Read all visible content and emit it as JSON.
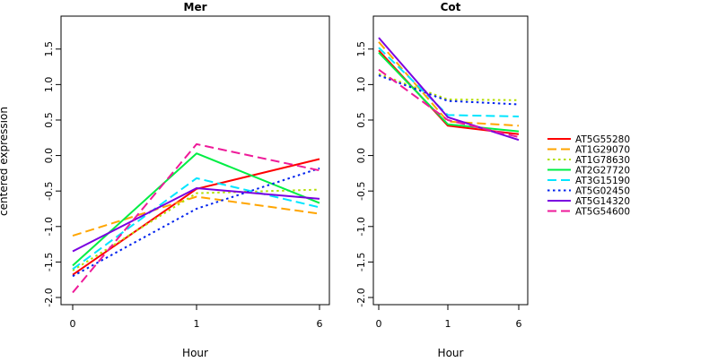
{
  "chart_data": {
    "type": "line",
    "ylabel": "centered expression",
    "legend_position": "right",
    "series_styles": [
      {
        "name": "AT5G55280",
        "color": "#FF0000",
        "dash": "solid"
      },
      {
        "name": "AT1G29070",
        "color": "#FFA500",
        "dash": "dashed"
      },
      {
        "name": "AT1G78630",
        "color": "#B2DF00",
        "dash": "dotted"
      },
      {
        "name": "AT2G27720",
        "color": "#00EE44",
        "dash": "solid"
      },
      {
        "name": "AT3G15190",
        "color": "#00E5FF",
        "dash": "dashed"
      },
      {
        "name": "AT5G02450",
        "color": "#0022EE",
        "dash": "dotted"
      },
      {
        "name": "AT5G14320",
        "color": "#7A00E0",
        "dash": "solid"
      },
      {
        "name": "AT5G54600",
        "color": "#EE1A99",
        "dash": "dashed"
      }
    ],
    "panels": [
      {
        "title": "Mer",
        "xlabel": "Hour",
        "categories": [
          "0",
          "1",
          "6"
        ],
        "ylim": [
          -2.0,
          1.8
        ],
        "yticks": [
          "-2.0",
          "-1.5",
          "-1.0",
          "-0.5",
          "0.0",
          "0.5",
          "1.0",
          "1.5"
        ],
        "series": [
          {
            "name": "AT5G55280",
            "values": [
              -1.68,
              -0.47,
              -0.05
            ]
          },
          {
            "name": "AT1G29070",
            "values": [
              -1.13,
              -0.58,
              -0.82
            ]
          },
          {
            "name": "AT1G78630",
            "values": [
              -1.62,
              -0.53,
              -0.48
            ]
          },
          {
            "name": "AT2G27720",
            "values": [
              -1.55,
              0.03,
              -0.67
            ]
          },
          {
            "name": "AT3G15190",
            "values": [
              -1.6,
              -0.32,
              -0.73
            ]
          },
          {
            "name": "AT5G02450",
            "values": [
              -1.7,
              -0.75,
              -0.18
            ]
          },
          {
            "name": "AT5G14320",
            "values": [
              -1.35,
              -0.46,
              -0.61
            ]
          },
          {
            "name": "AT5G54600",
            "values": [
              -1.93,
              0.16,
              -0.21
            ]
          }
        ]
      },
      {
        "title": "Cot",
        "xlabel": "Hour",
        "categories": [
          "0",
          "1",
          "6"
        ],
        "ylim": [
          -2.0,
          1.8
        ],
        "yticks": [
          "-2.0",
          "-1.5",
          "-1.0",
          "-0.5",
          "0.0",
          "0.5",
          "1.0",
          "1.5"
        ],
        "series": [
          {
            "name": "AT5G55280",
            "values": [
              1.48,
              0.42,
              0.3
            ]
          },
          {
            "name": "AT1G29070",
            "values": [
              1.6,
              0.48,
              0.42
            ]
          },
          {
            "name": "AT1G78630",
            "values": [
              1.15,
              0.79,
              0.78
            ]
          },
          {
            "name": "AT2G27720",
            "values": [
              1.45,
              0.44,
              0.34
            ]
          },
          {
            "name": "AT3G15190",
            "values": [
              1.52,
              0.57,
              0.55
            ]
          },
          {
            "name": "AT5G02450",
            "values": [
              1.13,
              0.77,
              0.72
            ]
          },
          {
            "name": "AT5G14320",
            "values": [
              1.66,
              0.54,
              0.22
            ]
          },
          {
            "name": "AT5G54600",
            "values": [
              1.21,
              0.5,
              0.26
            ]
          }
        ]
      }
    ]
  }
}
